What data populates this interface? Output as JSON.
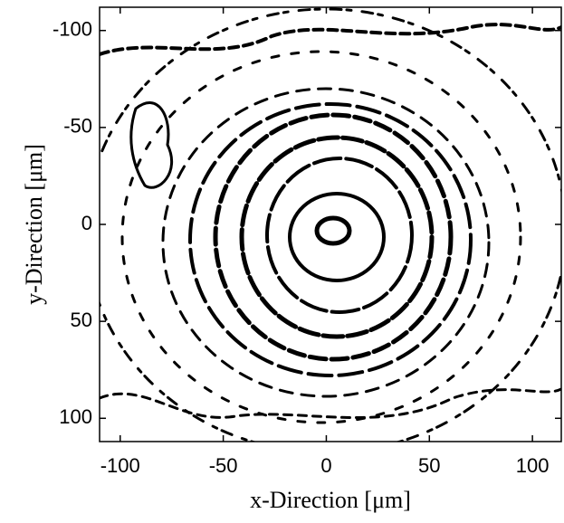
{
  "chart_data": {
    "type": "contour",
    "xlabel": "x-Direction [μm]",
    "ylabel": "y-Direction [μm]",
    "xlim": [
      -110,
      114
    ],
    "ylim": [
      -112,
      112
    ],
    "y_inverted": true,
    "xticks": [
      -100,
      -50,
      0,
      50,
      100
    ],
    "yticks": [
      -100,
      -50,
      0,
      50,
      100
    ],
    "color": "#000000"
  }
}
